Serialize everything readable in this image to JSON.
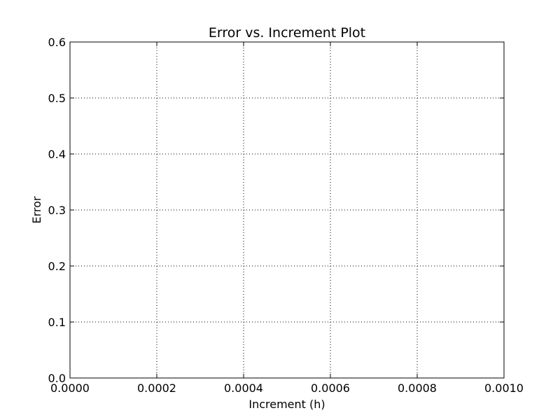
{
  "chart_data": {
    "type": "line",
    "title": "Error vs. Increment Plot",
    "xlabel": "Increment (h)",
    "ylabel": "Error",
    "xlim": [
      0,
      0.001
    ],
    "ylim": [
      0,
      0.6
    ],
    "xticks": [
      0.0,
      0.0002,
      0.0004,
      0.0006,
      0.0008,
      0.001
    ],
    "xtick_labels": [
      "0.0000",
      "0.0002",
      "0.0004",
      "0.0006",
      "0.0008",
      "0.0010"
    ],
    "yticks": [
      0.0,
      0.1,
      0.2,
      0.3,
      0.4,
      0.5,
      0.6
    ],
    "ytick_labels": [
      "0.0",
      "0.1",
      "0.2",
      "0.3",
      "0.4",
      "0.5",
      "0.6"
    ],
    "grid": true,
    "grid_style": "dotted",
    "series": []
  },
  "colors": {
    "axes": "#000000",
    "grid": "#000000",
    "background": "#ffffff"
  }
}
